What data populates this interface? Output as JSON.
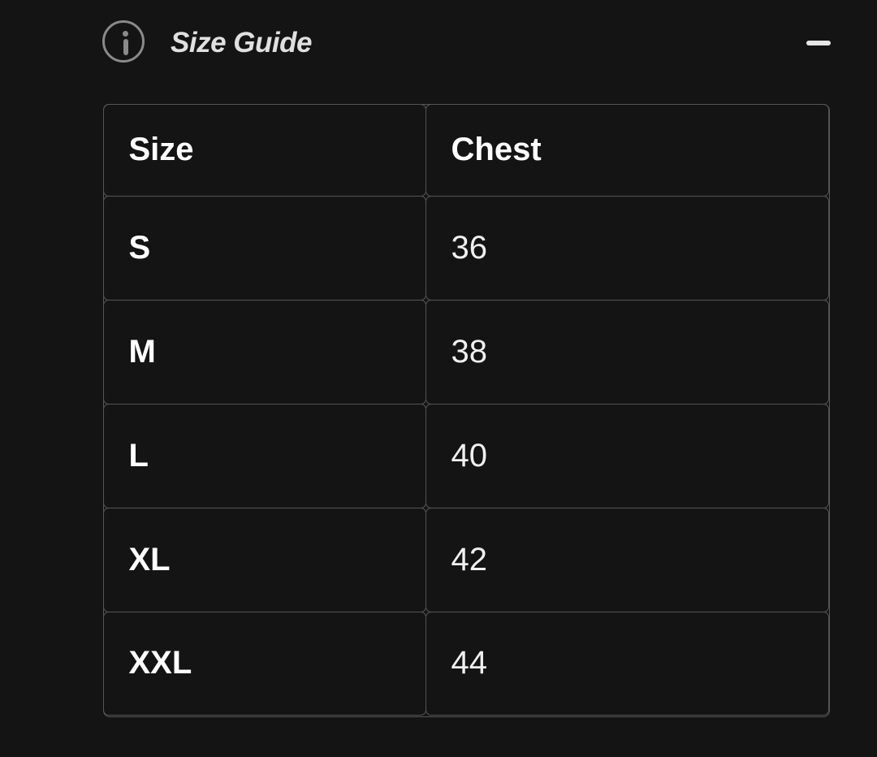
{
  "section": {
    "title": "Size Guide",
    "icon": "info-circle-icon",
    "toggle_icon": "minus-icon",
    "expanded": true
  },
  "table": {
    "columns": [
      "Size",
      "Chest"
    ],
    "rows": [
      [
        "S",
        "36"
      ],
      [
        "M",
        "38"
      ],
      [
        "L",
        "40"
      ],
      [
        "XL",
        "42"
      ],
      [
        "XXL",
        "44"
      ]
    ]
  },
  "colors": {
    "background": "#141414",
    "border": "#555555",
    "text": "#ffffff"
  }
}
